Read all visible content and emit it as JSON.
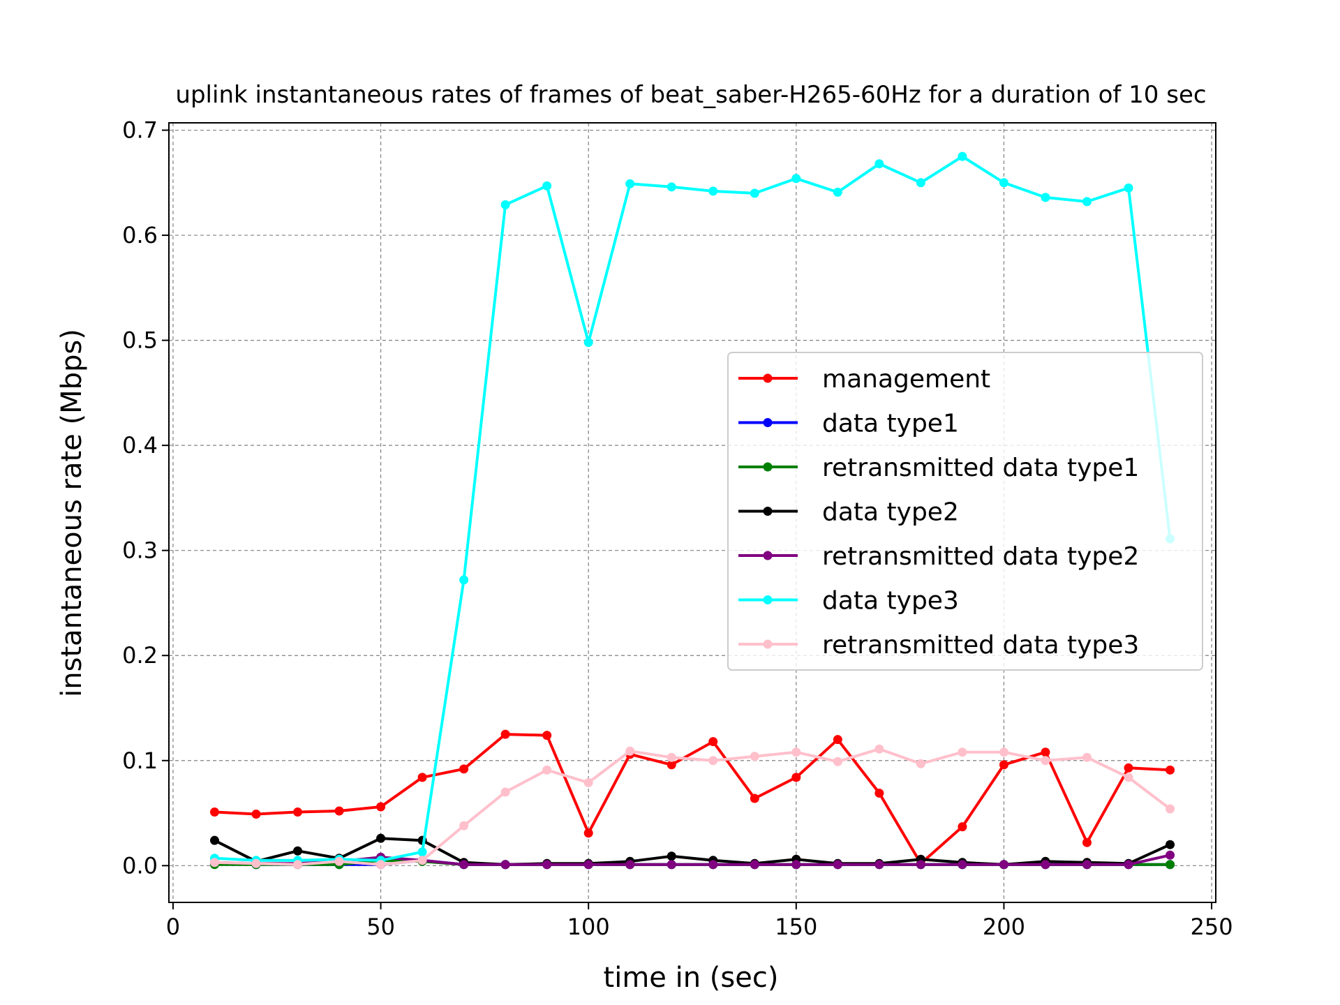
{
  "chart_data": {
    "type": "line",
    "title": "uplink instantaneous rates of frames of beat_saber-H265-60Hz for a duration of 10 sec",
    "xlabel": "time in (sec)",
    "ylabel": "instantaneous rate (Mbps)",
    "xlim": [
      -1,
      251
    ],
    "ylim": [
      -0.035,
      0.707
    ],
    "xticks": [
      0,
      50,
      100,
      150,
      200,
      250
    ],
    "xtick_labels": [
      "0",
      "50",
      "100",
      "150",
      "200",
      "250"
    ],
    "yticks": [
      0.0,
      0.1,
      0.2,
      0.3,
      0.4,
      0.5,
      0.6,
      0.7
    ],
    "ytick_labels": [
      "0.0",
      "0.1",
      "0.2",
      "0.3",
      "0.4",
      "0.5",
      "0.6",
      "0.7"
    ],
    "grid": true,
    "legend_position": "center-right",
    "x": [
      10,
      20,
      30,
      40,
      50,
      60,
      70,
      80,
      90,
      100,
      110,
      120,
      130,
      140,
      150,
      160,
      170,
      180,
      190,
      200,
      210,
      220,
      230,
      240
    ],
    "series": [
      {
        "name": "management",
        "color": "#ff0000",
        "values": [
          0.051,
          0.049,
          0.051,
          0.052,
          0.056,
          0.084,
          0.092,
          0.125,
          0.124,
          0.031,
          0.106,
          0.096,
          0.118,
          0.064,
          0.084,
          0.12,
          0.069,
          0.002,
          0.037,
          0.096,
          0.108,
          0.022,
          0.093,
          0.091
        ]
      },
      {
        "name": "data type1",
        "color": "#0000ff",
        "values": [
          0.002,
          0.001,
          0.001,
          0.001,
          0.001,
          0.005,
          0.001,
          0.001,
          0.001,
          0.001,
          0.001,
          0.001,
          0.001,
          0.001,
          0.001,
          0.001,
          0.001,
          0.001,
          0.001,
          0.001,
          0.001,
          0.001,
          0.001,
          0.001
        ]
      },
      {
        "name": "retransmitted data type1",
        "color": "#008000",
        "values": [
          0.001,
          0.001,
          0.001,
          0.001,
          0.005,
          0.004,
          0.001,
          0.001,
          0.001,
          0.001,
          0.001,
          0.001,
          0.001,
          0.001,
          0.001,
          0.001,
          0.001,
          0.001,
          0.001,
          0.001,
          0.001,
          0.001,
          0.001,
          0.001
        ]
      },
      {
        "name": "data type2",
        "color": "#000000",
        "values": [
          0.024,
          0.004,
          0.014,
          0.007,
          0.026,
          0.024,
          0.003,
          0.001,
          0.002,
          0.002,
          0.004,
          0.009,
          0.005,
          0.002,
          0.006,
          0.002,
          0.002,
          0.006,
          0.003,
          0.001,
          0.004,
          0.003,
          0.002,
          0.02
        ]
      },
      {
        "name": "retransmitted data type2",
        "color": "#800080",
        "values": [
          0.003,
          0.002,
          0.002,
          0.004,
          0.008,
          0.005,
          0.001,
          0.001,
          0.001,
          0.001,
          0.001,
          0.001,
          0.001,
          0.001,
          0.001,
          0.001,
          0.001,
          0.001,
          0.001,
          0.001,
          0.001,
          0.001,
          0.001,
          0.01
        ]
      },
      {
        "name": "data type3",
        "color": "#00ffff",
        "values": [
          0.007,
          0.005,
          0.005,
          0.006,
          0.005,
          0.013,
          0.272,
          0.629,
          0.647,
          0.498,
          0.649,
          0.646,
          0.642,
          0.64,
          0.654,
          0.641,
          0.668,
          0.65,
          0.675,
          0.65,
          0.636,
          0.632,
          0.645,
          0.311
        ]
      },
      {
        "name": "retransmitted data type3",
        "color": "#ffc0cb",
        "values": [
          0.003,
          0.002,
          0.001,
          0.004,
          0.001,
          0.005,
          0.038,
          0.07,
          0.091,
          0.079,
          0.109,
          0.103,
          0.1,
          0.104,
          0.108,
          0.099,
          0.111,
          0.097,
          0.108,
          0.108,
          0.1,
          0.103,
          0.084,
          0.054
        ]
      }
    ]
  }
}
